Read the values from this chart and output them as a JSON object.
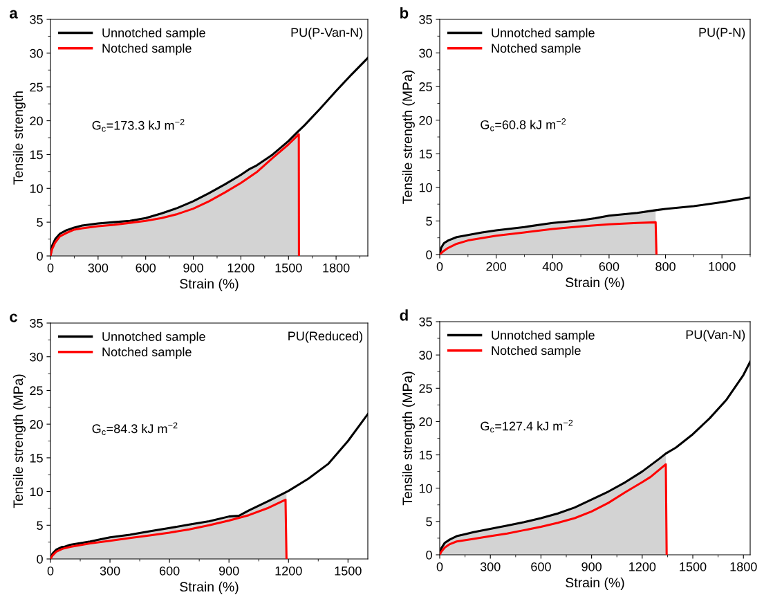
{
  "chart_data": [
    {
      "type": "line",
      "title": "a",
      "xlabel": "Strain (%)",
      "ylabel": "Tensile strength",
      "annotations": [
        "PU(P-Van-N)",
        "G$_{c}$=173.3 kJ m$^{−2}$"
      ],
      "xlim": [
        0,
        2000
      ],
      "xticks": [
        0,
        300,
        600,
        900,
        1200,
        1500,
        1800
      ],
      "ylim": [
        0,
        35
      ],
      "yticks": [
        0,
        5,
        10,
        15,
        20,
        25,
        30,
        35
      ],
      "legend": "top left",
      "grid": false,
      "series": [
        {
          "type": "area",
          "color": "#d3d3d3",
          "x": [
            0,
            10,
            30,
            60,
            100,
            150,
            200,
            300,
            400,
            500,
            600,
            700,
            800,
            900,
            1000,
            1100,
            1200,
            1250,
            1300,
            1400,
            1500,
            1565
          ],
          "values": [
            0,
            1.5,
            2.5,
            3.3,
            3.8,
            4.2,
            4.5,
            4.8,
            5.0,
            5.2,
            5.6,
            6.3,
            7.1,
            8.1,
            9.3,
            10.6,
            12.0,
            12.8,
            13.4,
            15.0,
            17.0,
            18.5
          ]
        },
        {
          "name": "Unnotched sample",
          "color": "#000000",
          "x": [
            0,
            10,
            30,
            60,
            100,
            150,
            200,
            300,
            400,
            500,
            600,
            700,
            800,
            900,
            1000,
            1100,
            1200,
            1250,
            1300,
            1400,
            1500,
            1560,
            1600,
            1700,
            1800,
            1900,
            2000
          ],
          "values": [
            0,
            1.5,
            2.5,
            3.3,
            3.8,
            4.2,
            4.5,
            4.8,
            5.0,
            5.2,
            5.6,
            6.3,
            7.1,
            8.1,
            9.3,
            10.6,
            12.0,
            12.8,
            13.4,
            15.0,
            17.0,
            18.4,
            19.3,
            21.8,
            24.4,
            26.9,
            29.3
          ]
        },
        {
          "name": "Notched sample",
          "color": "#ff0000",
          "x": [
            0,
            10,
            30,
            60,
            100,
            150,
            200,
            300,
            400,
            500,
            600,
            700,
            800,
            900,
            1000,
            1100,
            1200,
            1300,
            1400,
            1500,
            1565,
            1566
          ],
          "values": [
            0,
            1.0,
            2.0,
            2.9,
            3.4,
            3.9,
            4.1,
            4.4,
            4.6,
            4.9,
            5.2,
            5.6,
            6.2,
            7.0,
            8.1,
            9.4,
            10.8,
            12.4,
            14.5,
            16.5,
            18.0,
            0
          ]
        }
      ]
    },
    {
      "type": "line",
      "title": "b",
      "xlabel": "Strain (%)",
      "ylabel": "Tensile strength (MPa)",
      "annotations": [
        "PU(P-N)",
        "G$_{c}$=60.8 kJ m$^{−2}$"
      ],
      "xlim": [
        0,
        1100
      ],
      "xticks": [
        0,
        200,
        400,
        600,
        800,
        1000
      ],
      "ylim": [
        0,
        35
      ],
      "yticks": [
        0,
        5,
        10,
        15,
        20,
        25,
        30,
        35
      ],
      "legend": "top left",
      "grid": false,
      "series": [
        {
          "type": "area",
          "color": "#d3d3d3",
          "x": [
            0,
            5,
            15,
            30,
            60,
            100,
            150,
            200,
            300,
            400,
            500,
            550,
            600,
            700,
            765
          ],
          "values": [
            0,
            1.0,
            1.7,
            2.1,
            2.6,
            2.9,
            3.3,
            3.6,
            4.1,
            4.7,
            5.1,
            5.4,
            5.8,
            6.2,
            6.6
          ]
        },
        {
          "name": "Unnotched sample",
          "color": "#000000",
          "x": [
            0,
            5,
            15,
            30,
            60,
            100,
            150,
            200,
            300,
            400,
            500,
            550,
            600,
            700,
            765,
            800,
            900,
            1000,
            1100
          ],
          "values": [
            0,
            1.0,
            1.7,
            2.1,
            2.6,
            2.9,
            3.3,
            3.6,
            4.1,
            4.7,
            5.1,
            5.4,
            5.8,
            6.2,
            6.6,
            6.8,
            7.2,
            7.8,
            8.5
          ]
        },
        {
          "name": "Notched sample",
          "color": "#ff0000",
          "x": [
            0,
            10,
            30,
            60,
            100,
            200,
            300,
            400,
            500,
            600,
            700,
            765,
            768
          ],
          "values": [
            0,
            0.4,
            1.0,
            1.6,
            2.1,
            2.8,
            3.3,
            3.8,
            4.2,
            4.5,
            4.7,
            4.8,
            0
          ]
        }
      ]
    },
    {
      "type": "line",
      "title": "c",
      "xlabel": "Strain (%)",
      "ylabel": "Tensile strength (MPa)",
      "annotations": [
        "PU(Reduced)",
        "G$_{c}$=84.3 kJ m$^{−2}$"
      ],
      "xlim": [
        0,
        1600
      ],
      "xticks": [
        0,
        300,
        600,
        900,
        1200,
        1500
      ],
      "ylim": [
        0,
        35
      ],
      "yticks": [
        0,
        5,
        10,
        15,
        20,
        25,
        30,
        35
      ],
      "legend": "top left",
      "grid": false,
      "series": [
        {
          "type": "area",
          "color": "#d3d3d3",
          "x": [
            0,
            10,
            30,
            60,
            70,
            100,
            200,
            300,
            400,
            500,
            600,
            700,
            800,
            900,
            950,
            1000,
            1100,
            1190
          ],
          "values": [
            0,
            0.8,
            1.4,
            1.8,
            1.8,
            2.1,
            2.6,
            3.2,
            3.6,
            4.1,
            4.6,
            5.1,
            5.6,
            6.3,
            6.4,
            7.2,
            8.6,
            9.8
          ]
        },
        {
          "name": "Unnotched sample",
          "color": "#000000",
          "x": [
            0,
            10,
            30,
            60,
            70,
            100,
            200,
            300,
            400,
            500,
            600,
            700,
            800,
            900,
            950,
            1000,
            1100,
            1200,
            1300,
            1400,
            1500,
            1600
          ],
          "values": [
            0,
            0.8,
            1.4,
            1.8,
            1.8,
            2.1,
            2.6,
            3.2,
            3.6,
            4.1,
            4.6,
            5.1,
            5.6,
            6.3,
            6.4,
            7.2,
            8.6,
            10.1,
            11.9,
            14.1,
            17.5,
            21.5
          ]
        },
        {
          "name": "Notched sample",
          "color": "#ff0000",
          "x": [
            0,
            10,
            30,
            60,
            100,
            200,
            300,
            400,
            500,
            600,
            700,
            800,
            900,
            1000,
            1100,
            1185,
            1190
          ],
          "values": [
            0,
            0.5,
            1.1,
            1.5,
            1.8,
            2.3,
            2.7,
            3.1,
            3.5,
            3.9,
            4.4,
            5.0,
            5.7,
            6.5,
            7.6,
            8.8,
            0
          ]
        }
      ]
    },
    {
      "type": "line",
      "title": "d",
      "xlabel": "Strain (%)",
      "ylabel": "Tensile strength (MPa)",
      "annotations": [
        "PU(Van-N)",
        "G$_{c}$=127.4 kJ m$^{−2}$"
      ],
      "xlim": [
        0,
        1840
      ],
      "xticks": [
        0,
        300,
        600,
        900,
        1200,
        1500,
        1800
      ],
      "ylim": [
        0,
        35
      ],
      "yticks": [
        0,
        5,
        10,
        15,
        20,
        25,
        30,
        35
      ],
      "legend": "top left",
      "grid": false,
      "series": [
        {
          "type": "area",
          "color": "#d3d3d3",
          "x": [
            0,
            10,
            30,
            60,
            100,
            150,
            200,
            300,
            400,
            500,
            600,
            700,
            800,
            900,
            1000,
            1100,
            1200,
            1300,
            1340
          ],
          "values": [
            0,
            1.0,
            1.8,
            2.3,
            2.8,
            3.1,
            3.4,
            3.9,
            4.4,
            4.9,
            5.5,
            6.2,
            7.1,
            8.3,
            9.5,
            10.9,
            12.5,
            14.4,
            15.0
          ]
        },
        {
          "name": "Unnotched sample",
          "color": "#000000",
          "x": [
            0,
            10,
            30,
            60,
            100,
            150,
            200,
            300,
            400,
            500,
            600,
            700,
            800,
            900,
            1000,
            1100,
            1200,
            1300,
            1340,
            1400,
            1500,
            1600,
            1700,
            1800,
            1840
          ],
          "values": [
            0,
            1.0,
            1.8,
            2.3,
            2.8,
            3.1,
            3.4,
            3.9,
            4.4,
            4.9,
            5.5,
            6.2,
            7.1,
            8.3,
            9.5,
            10.9,
            12.5,
            14.4,
            15.2,
            16.1,
            18.1,
            20.5,
            23.3,
            27.0,
            29.0
          ]
        },
        {
          "name": "Notched sample",
          "color": "#ff0000",
          "x": [
            0,
            10,
            30,
            60,
            100,
            200,
            300,
            400,
            500,
            600,
            700,
            800,
            900,
            1000,
            1100,
            1200,
            1250,
            1340,
            1345
          ],
          "values": [
            0,
            0.5,
            1.1,
            1.6,
            2.0,
            2.4,
            2.8,
            3.2,
            3.7,
            4.2,
            4.8,
            5.5,
            6.5,
            7.8,
            9.4,
            10.9,
            11.7,
            13.6,
            0
          ]
        }
      ]
    }
  ]
}
